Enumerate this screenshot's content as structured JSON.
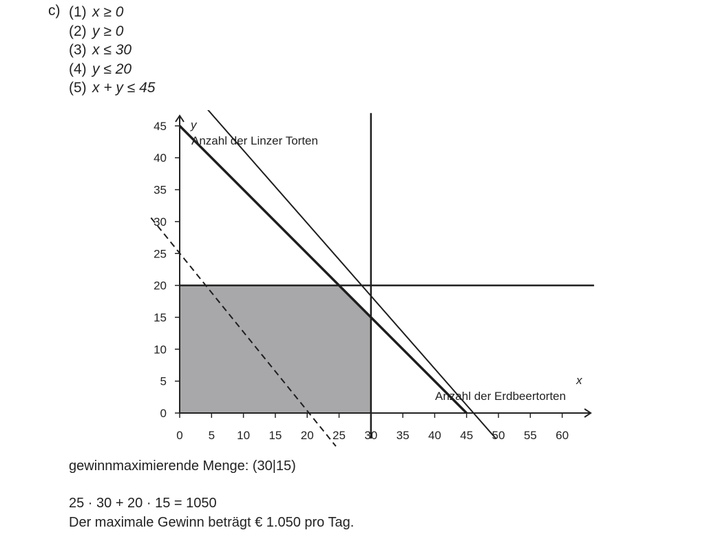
{
  "part_label": "c)",
  "constraints": [
    {
      "num": "(1)",
      "expr": "x ≥ 0"
    },
    {
      "num": "(2)",
      "expr": "y ≥ 0"
    },
    {
      "num": "(3)",
      "expr": "x ≤ 30"
    },
    {
      "num": "(4)",
      "expr": "y ≤ 20"
    },
    {
      "num": "(5)",
      "expr": "x + y ≤ 45"
    }
  ],
  "chart_data": {
    "type": "line",
    "xlabel_var": "x",
    "xlabel": "Anzahl der Erdbeertorten",
    "ylabel_var": "y",
    "ylabel": "Anzahl der Linzer Torten",
    "xlim": [
      0,
      65
    ],
    "ylim": [
      0,
      47
    ],
    "x_ticks": [
      0,
      5,
      10,
      15,
      20,
      25,
      30,
      35,
      40,
      45,
      50,
      55,
      60
    ],
    "y_ticks": [
      0,
      5,
      10,
      15,
      20,
      25,
      30,
      35,
      40,
      45
    ],
    "feasible_region": [
      [
        0,
        0
      ],
      [
        30,
        0
      ],
      [
        30,
        15
      ],
      [
        25,
        20
      ],
      [
        0,
        20
      ]
    ],
    "feasible_color": "#a8a8aa",
    "lines": [
      {
        "points": [
          [
            0,
            45
          ],
          [
            45,
            0
          ]
        ],
        "style": "solid",
        "width": 3.5
      },
      {
        "points": [
          [
            4,
            48
          ],
          [
            49.6,
            -4
          ]
        ],
        "style": "solid",
        "width": 2
      },
      {
        "points": [
          [
            30,
            -4
          ],
          [
            30,
            47
          ]
        ],
        "style": "solid",
        "width": 2.5
      },
      {
        "points": [
          [
            0,
            20
          ],
          [
            65,
            20
          ]
        ],
        "style": "solid",
        "width": 2.5
      },
      {
        "points": [
          [
            -4.5,
            30.6
          ],
          [
            24.5,
            -5.2
          ]
        ],
        "style": "dashed",
        "width": 2
      }
    ],
    "optimum_point": [
      30,
      15
    ]
  },
  "results": {
    "optimum_line": "gewinnmaximierende Menge: (30|15)",
    "calc_line": "25 · 30 + 20 · 15 = 1050",
    "profit_line": "Der maximale Gewinn beträgt € 1.050 pro Tag."
  }
}
